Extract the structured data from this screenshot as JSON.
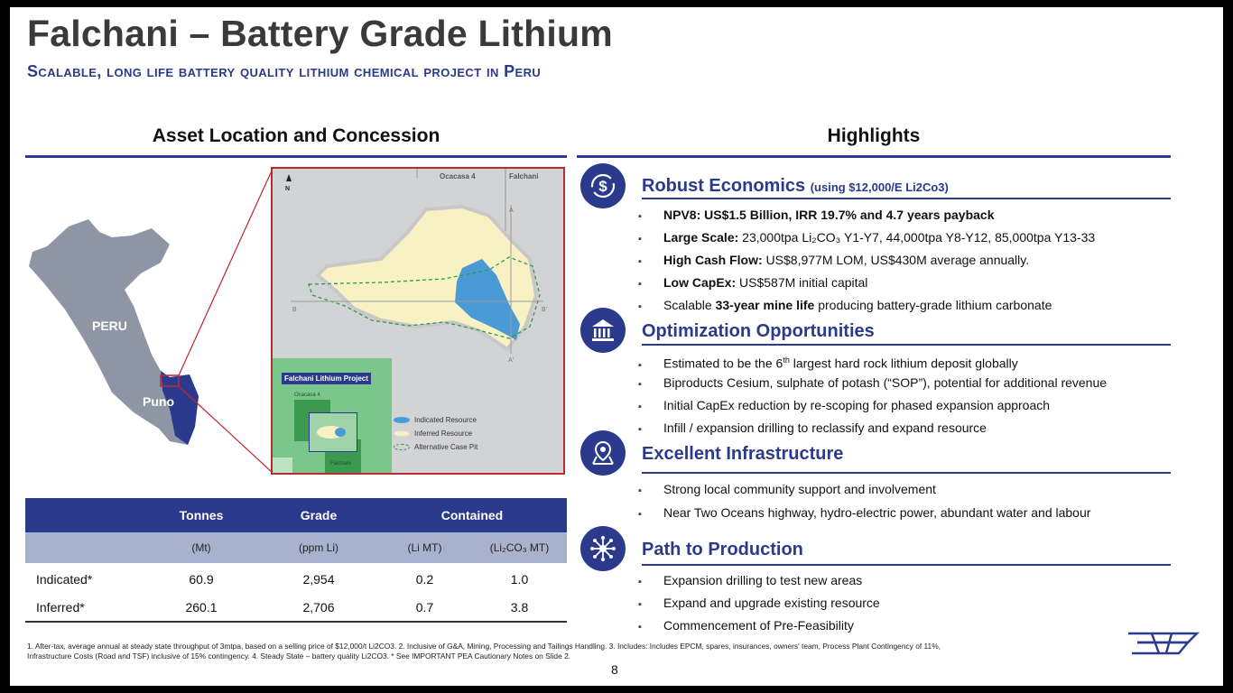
{
  "title": "Falchani – Battery Grade Lithium",
  "subtitle": "Scalable, long life battery quality lithium chemical project in Peru",
  "left_heading": "Asset Location and Concession",
  "right_heading": "Highlights",
  "map": {
    "peru_label": "PERU",
    "puno_label": "Puno",
    "north_label": "N",
    "ocacasa_label": "Ocacasa 4",
    "falchani_label": "Falchani",
    "section_a": "A",
    "section_a2": "A'",
    "section_b": "B",
    "section_b2": "B'",
    "project_label": "Falchani Lithium Project",
    "mini_ocacasa": "Ocacasa 4",
    "mini_falchani": "Falchani",
    "legend": [
      "Indicated Resource",
      "Inferred Resource",
      "Alternative Case Pit"
    ],
    "colors": {
      "indicated": "#4a9ad6",
      "inferred": "#f7f1c4",
      "pit": "#2e9a4a",
      "country": "#8e96a6",
      "puno": "#2b3a8c"
    }
  },
  "table": {
    "headers": [
      "",
      "Tonnes",
      "Grade",
      "Contained"
    ],
    "units": [
      "(Mt)",
      "(ppm Li)",
      "(Li MT)",
      "(Li₂CO₃ MT)"
    ],
    "rows": [
      {
        "label": "Indicated*",
        "tonnes": "60.9",
        "grade": "2,954",
        "li": "0.2",
        "li2co3": "1.0"
      },
      {
        "label": "Inferred*",
        "tonnes": "260.1",
        "grade": "2,706",
        "li": "0.7",
        "li2co3": "3.8"
      }
    ]
  },
  "highlights": {
    "robust": {
      "title": "Robust Economics",
      "title_note": "(using $12,000/E Li2Co3)",
      "icon": "dollar-cycle-icon",
      "b1": "NPV8: US$1.5 Billion, IRR 19.7% and 4.7 years payback",
      "b2_bold": "Large Scale:",
      "b2_rest": " 23,000tpa Li₂CO₃ Y1-Y7, 44,000tpa Y8-Y12, 85,000tpa Y13-33",
      "b3_bold": "High Cash Flow:",
      "b3_rest": " US$8,977M LOM, US$430M average annually.",
      "b4_bold": "Low CapEx:",
      "b4_rest": " US$587M initial capital",
      "b5_pre": "Scalable ",
      "b5_bold": "33-year mine life",
      "b5_rest": " producing battery-grade lithium carbonate"
    },
    "optimization": {
      "title": "Optimization Opportunities",
      "icon": "bank-icon",
      "b1_pre": "Estimated to be the 6",
      "b1_sup": "th",
      "b1_rest": " largest hard rock lithium deposit globally",
      "b2": "Biproducts Cesium, sulphate of potash (“SOP”), potential for additional revenue",
      "b3": "Initial CapEx reduction by re-scoping for phased expansion approach",
      "b4": "Infill / expansion drilling to reclassify and expand resource"
    },
    "infrastructure": {
      "title": "Excellent Infrastructure",
      "icon": "map-pin-icon",
      "b1": "Strong local community support and involvement",
      "b2": "Near Two Oceans highway, hydro-electric power, abundant water and labour"
    },
    "production": {
      "title": "Path to Production",
      "icon": "network-icon",
      "b1": "Expansion drilling to test new areas",
      "b2": "Expand and upgrade existing resource",
      "b3": "Commencement of Pre-Feasibility"
    }
  },
  "footnote_line1": "1. After-tax, average annual at steady state throughput of 3mtpa, based on a selling price of $12,000/t Li2CO3. 2. Inclusive of G&A, Mining, Processing and Tailings Handling. 3. Includes: Includes EPCM, spares, insurances, owners' team, Process Plant Contingency of 11%,",
  "footnote_line2": "Infrastructure Costs (Road and TSF) inclusive of 15% contingency.  4. Steady State – battery quality Li2CO3. * See IMPORTANT PEA Cautionary Notes on Slide 2.",
  "page_number": "8"
}
